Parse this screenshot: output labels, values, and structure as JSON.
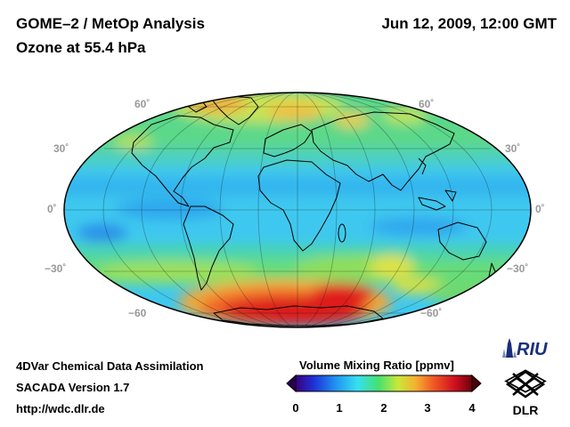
{
  "header": {
    "title": "GOME–2 / MetOp Analysis",
    "subtitle": "Ozone at 55.4 hPa",
    "datetime": "Jun 12, 2009, 12:00 GMT"
  },
  "map": {
    "projection": "Mollweide",
    "lat_labels_left": [
      "60˚",
      "30˚",
      "0˚",
      "−30˚",
      "−60"
    ],
    "lat_labels_right": [
      "60˚",
      "30˚",
      "0˚",
      "−30˚",
      "−60˚"
    ]
  },
  "footer": {
    "line1": "4DVar Chemical Data Assimilation",
    "line2": "SACADA Version 1.7",
    "line3": "http://wdc.dlr.de"
  },
  "colorbar": {
    "title": "Volume Mixing Ratio [ppmv]",
    "ticks": [
      "0",
      "1",
      "2",
      "3",
      "4"
    ],
    "min": 0,
    "max": 4,
    "colors": [
      "#3b007a",
      "#1e2fd6",
      "#1f8ff0",
      "#35e0f0",
      "#46e070",
      "#c8e83a",
      "#f5b030",
      "#f05a25",
      "#d01020",
      "#70000c"
    ]
  },
  "logos": {
    "riu": "RIU",
    "dlr": "DLR"
  }
}
